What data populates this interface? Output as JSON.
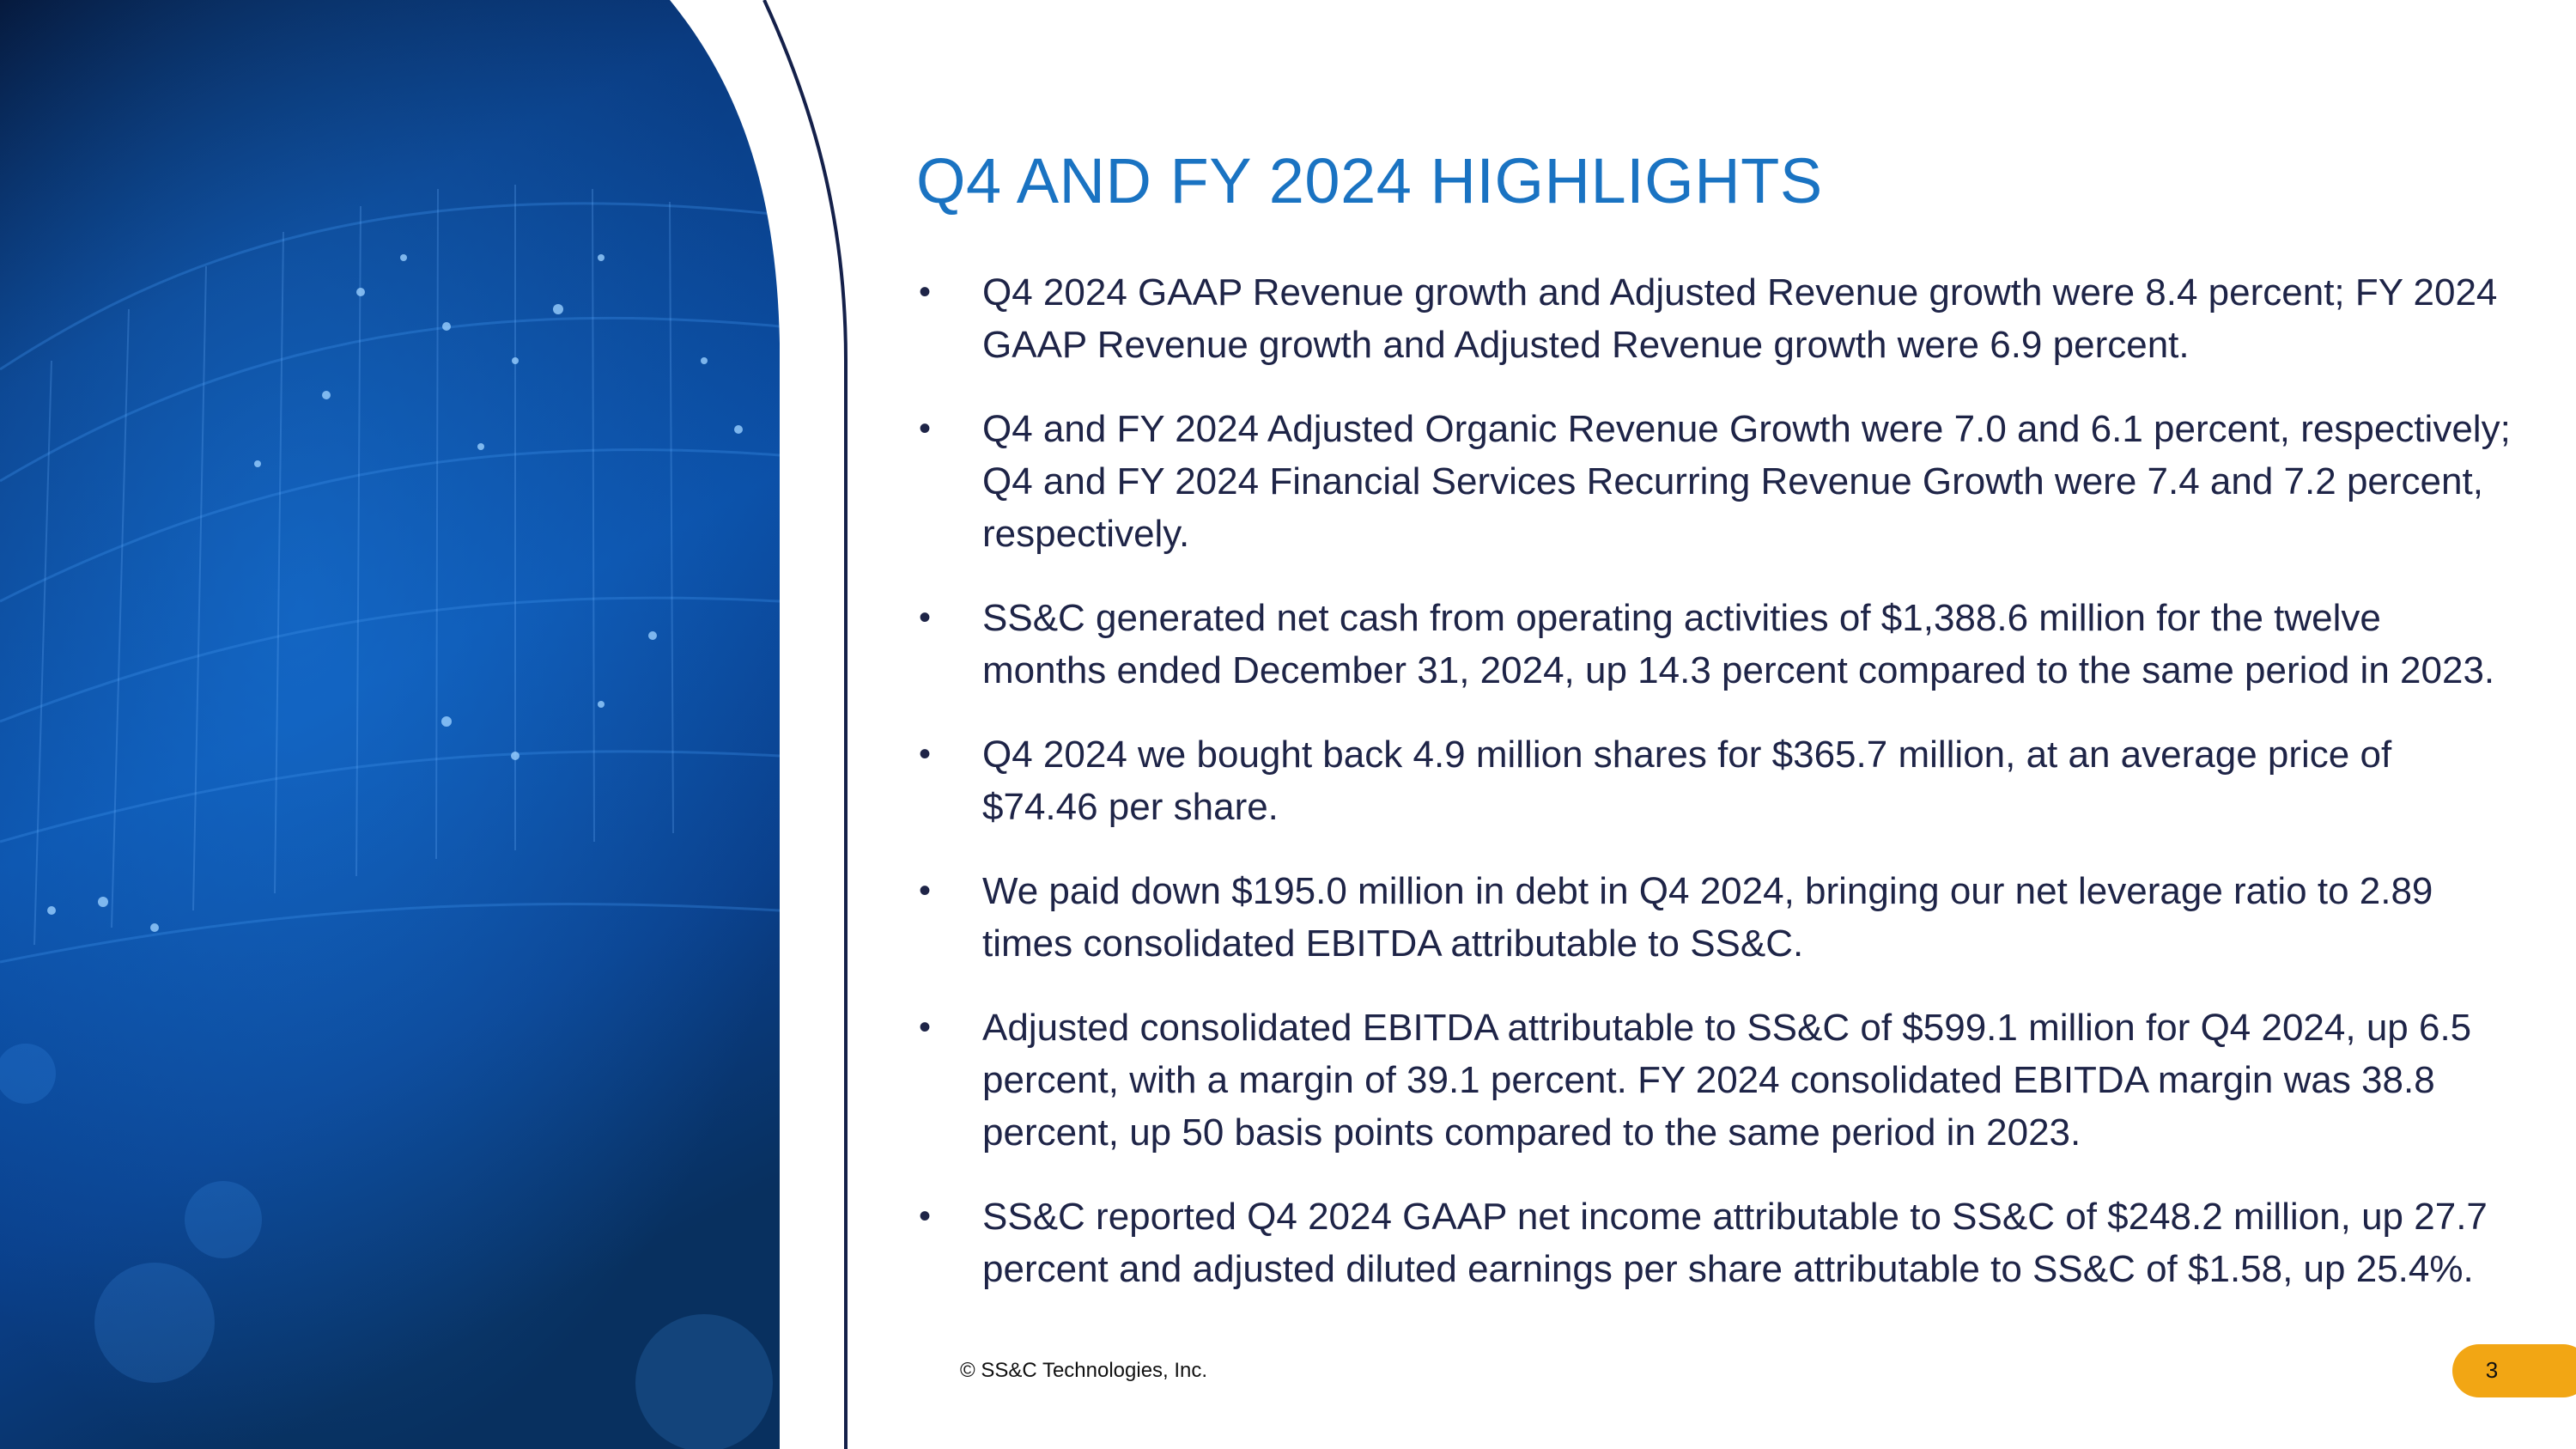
{
  "slide": {
    "title": "Q4 AND FY 2024 HIGHLIGHTS",
    "bullets": [
      {
        "lines": [
          "Q4 2024 GAAP Revenue growth and Adjusted Revenue growth were 8.4 percent; FY 2024",
          "GAAP Revenue growth and Adjusted Revenue growth were 6.9 percent."
        ]
      },
      {
        "lines": [
          "Q4 and FY 2024 Adjusted Organic Revenue Growth were 7.0 and 6.1 percent, respectively;",
          "Q4 and FY 2024 Financial Services Recurring Revenue Growth were 7.4 and 7.2 percent,",
          "respectively."
        ]
      },
      {
        "lines": [
          "SS&C generated net cash from operating activities of $1,388.6 million for the twelve",
          "months ended December 31, 2024, up 14.3 percent compared to the same period in 2023."
        ]
      },
      {
        "lines": [
          "Q4 2024 we bought back 4.9 million shares for $365.7 million, at an average price of",
          "$74.46 per share."
        ]
      },
      {
        "lines": [
          "We paid down $195.0 million in debt in Q4 2024, bringing our net leverage ratio to 2.89",
          "times consolidated EBITDA attributable to SS&C."
        ]
      },
      {
        "lines": [
          "Adjusted consolidated EBITDA attributable to SS&C of $599.1 million for Q4 2024, up 6.5",
          "percent, with a margin of 39.1 percent.  FY 2024 consolidated EBITDA margin was 38.8",
          "percent, up 50 basis points compared to the same period in 2023."
        ]
      },
      {
        "lines": [
          "SS&C reported Q4 2024 GAAP net income attributable to SS&C of $248.2 million, up 27.7",
          "percent and adjusted diluted earnings per share attributable to SS&C of $1.58, up 25.4%."
        ]
      }
    ],
    "bullet_symbol": "•",
    "footer": {
      "copyright": "© SS&C Technologies, Inc.",
      "page_number": "3"
    }
  },
  "colors": {
    "title": "#1a73c2",
    "body_text": "#1e2447",
    "arc_line": "#14204a",
    "badge": "#f2a614",
    "art_dark": "#06163a",
    "art_blue": "#0a5fc0"
  },
  "icons": {
    "art_panel": "blue-digital-wave-image"
  }
}
